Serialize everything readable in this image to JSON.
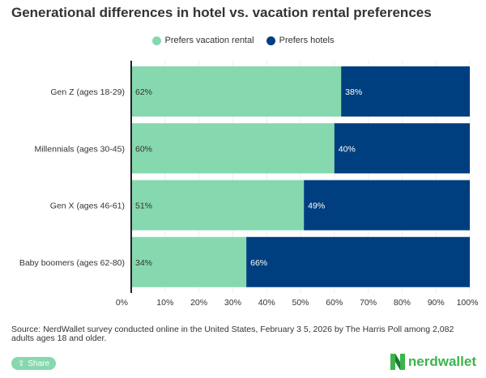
{
  "chart_data": {
    "type": "bar",
    "orientation": "horizontal",
    "stacked": true,
    "title": "Generational differences in hotel vs. vacation rental preferences",
    "categories": [
      "Gen Z (ages 18-29)",
      "Millennials (ages 30-45)",
      "Gen X (ages 46-61)",
      "Baby boomers (ages 62-80)"
    ],
    "series": [
      {
        "name": "Prefers vacation rental",
        "values": [
          62,
          60,
          51,
          34
        ],
        "color": "#86d8af"
      },
      {
        "name": "Prefers hotels",
        "values": [
          38,
          40,
          49,
          66
        ],
        "color": "#003f7f"
      }
    ],
    "xlim": [
      0,
      100
    ],
    "xticks": [
      "0%",
      "10%",
      "20%",
      "30%",
      "40%",
      "50%",
      "60%",
      "70%",
      "80%",
      "90%",
      "100%"
    ],
    "legend": "top-center",
    "grid": true
  },
  "source": "Source: NerdWallet survey conducted online in the United States, February 3 5, 2026 by The Harris Poll among 2,082 adults ages 18 and older.",
  "share_label": "Share",
  "logo_text": "nerdwallet"
}
